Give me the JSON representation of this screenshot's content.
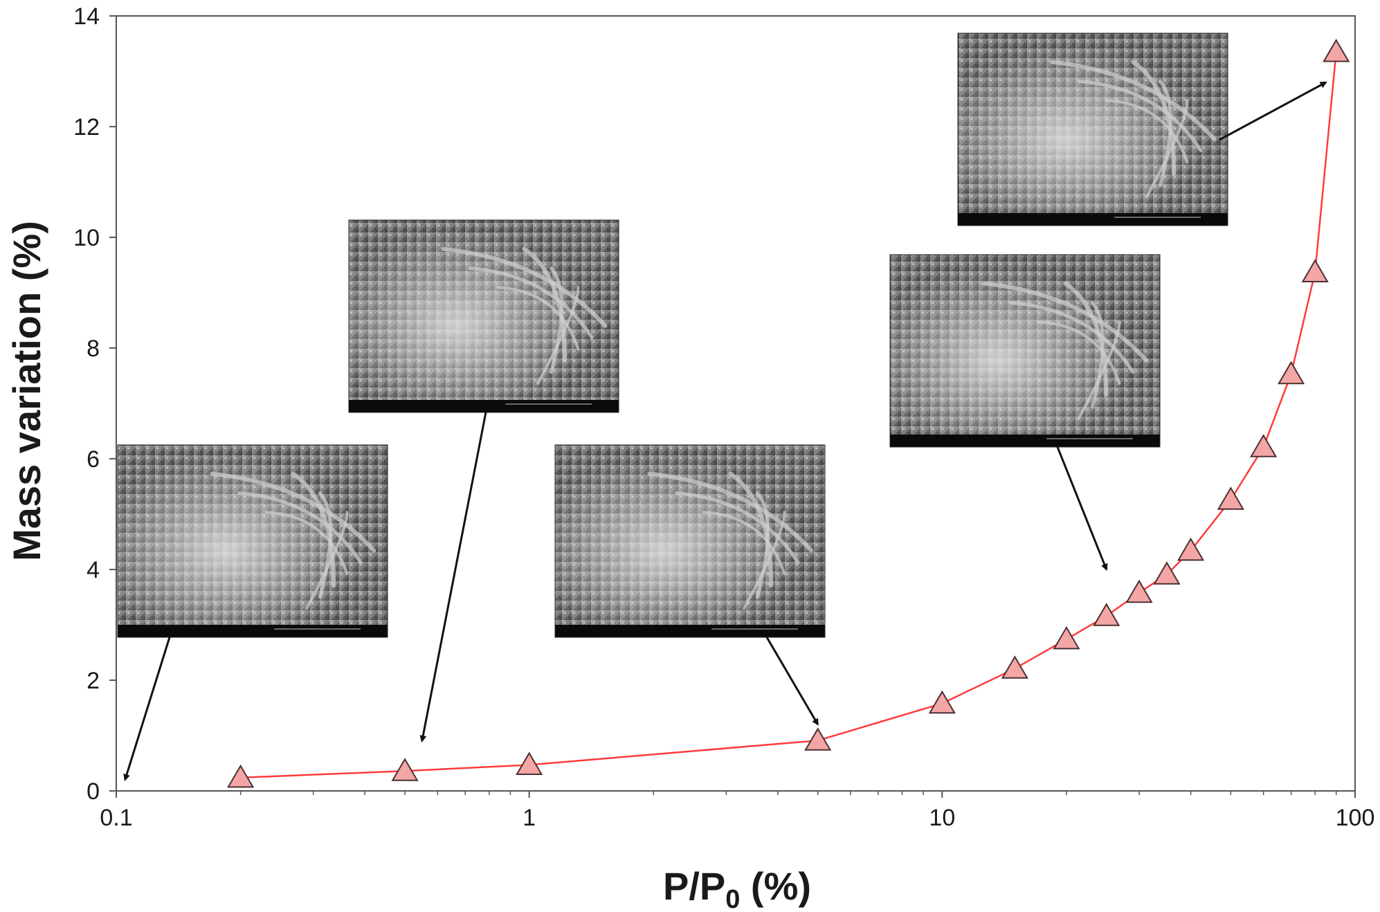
{
  "chart_data": {
    "type": "scatter",
    "xscale": "log",
    "xlim": [
      0.1,
      100
    ],
    "ylim": [
      0,
      14
    ],
    "xlabel_main": "P/P",
    "xlabel_sub": "0",
    "xlabel_tail": " (%)",
    "ylabel": "Mass variation (%)",
    "x_ticks": [
      0.1,
      1,
      10,
      100
    ],
    "x_tick_labels": [
      "0.1",
      "1",
      "10",
      "100"
    ],
    "y_ticks": [
      0,
      2,
      4,
      6,
      8,
      10,
      12,
      14
    ],
    "y_tick_labels": [
      "0",
      "2",
      "4",
      "6",
      "8",
      "10",
      "12",
      "14"
    ],
    "grid": false,
    "series": [
      {
        "line_color": "#ff3b3b",
        "marker": "triangle",
        "marker_fill": "#f4a6a6",
        "marker_stroke": "#4a3030",
        "x": [
          0.2,
          0.5,
          1,
          5,
          10,
          15,
          20,
          25,
          30,
          35,
          40,
          50,
          60,
          70,
          80,
          90
        ],
        "y": [
          0.24,
          0.36,
          0.47,
          0.91,
          1.58,
          2.21,
          2.74,
          3.16,
          3.58,
          3.91,
          4.34,
          5.26,
          6.21,
          7.53,
          9.37,
          13.35
        ]
      }
    ],
    "sem_insets": [
      {
        "name": "sem-image-1",
        "arrow_target": {
          "x": 0.105,
          "y": 0.2
        }
      },
      {
        "name": "sem-image-2",
        "arrow_target": {
          "x": 0.55,
          "y": 0.9
        }
      },
      {
        "name": "sem-image-3",
        "arrow_target": {
          "x": 5,
          "y": 1.2
        }
      },
      {
        "name": "sem-image-4",
        "arrow_target": {
          "x": 25,
          "y": 4.0
        }
      },
      {
        "name": "sem-image-5",
        "arrow_target": {
          "x": 85,
          "y": 12.8
        }
      }
    ]
  }
}
